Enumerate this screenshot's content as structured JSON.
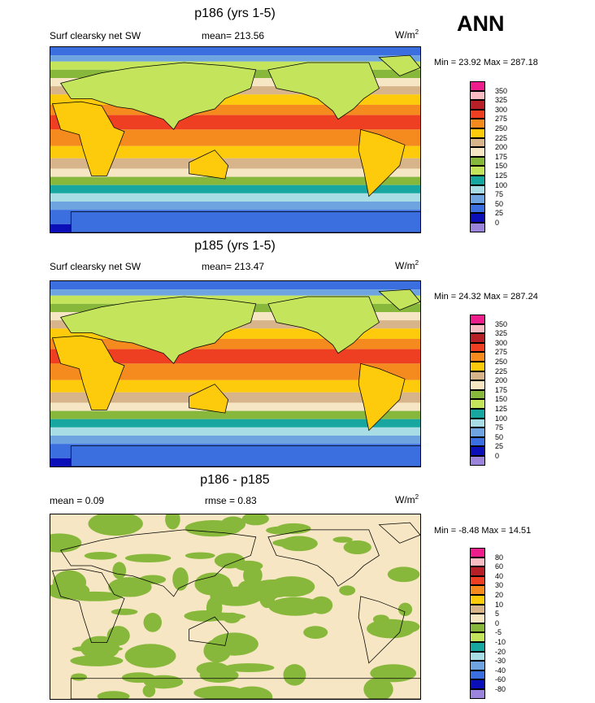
{
  "season": "ANN",
  "panels": [
    {
      "title": "p186 (yrs 1-5)",
      "left_label": "Surf clearsky net SW",
      "center_label": "mean= 213.56",
      "units": "W/m",
      "units_sup": "2",
      "minmax": "Min =  23.92 Max = 287.18",
      "type": "field",
      "levels": [
        "350",
        "325",
        "300",
        "275",
        "250",
        "225",
        "200",
        "175",
        "150",
        "125",
        "100",
        "75",
        "50",
        "25",
        "0"
      ],
      "colors": [
        "#ee1d8c",
        "#f9bcc3",
        "#b51f25",
        "#ef3f23",
        "#f58b1f",
        "#fdcb0b",
        "#d8b48a",
        "#f6e6c3",
        "#88b83b",
        "#c4e55b",
        "#17a7a0",
        "#a9dde6",
        "#6ea5e1",
        "#3b6fe0",
        "#0a0fb8",
        "#9b84dc"
      ]
    },
    {
      "title": "p185 (yrs 1-5)",
      "left_label": "Surf clearsky net SW",
      "center_label": "mean= 213.47",
      "units": "W/m",
      "units_sup": "2",
      "minmax": "Min =  24.32 Max = 287.24",
      "type": "field",
      "levels": [
        "350",
        "325",
        "300",
        "275",
        "250",
        "225",
        "200",
        "175",
        "150",
        "125",
        "100",
        "75",
        "50",
        "25",
        "0"
      ],
      "colors": [
        "#ee1d8c",
        "#f9bcc3",
        "#b51f25",
        "#ef3f23",
        "#f58b1f",
        "#fdcb0b",
        "#d8b48a",
        "#f6e6c3",
        "#88b83b",
        "#c4e55b",
        "#17a7a0",
        "#a9dde6",
        "#6ea5e1",
        "#3b6fe0",
        "#0a0fb8",
        "#9b84dc"
      ]
    },
    {
      "title": "p186 - p185",
      "left_label": "mean =   0.09",
      "center_label": "rmse =   0.83",
      "units": "W/m",
      "units_sup": "2",
      "minmax": "Min =  -8.48 Max =  14.51",
      "type": "diff",
      "levels": [
        "80",
        "60",
        "40",
        "30",
        "20",
        "10",
        "5",
        "0",
        "-5",
        "-10",
        "-20",
        "-30",
        "-40",
        "-60",
        "-80"
      ],
      "colors": [
        "#ee1d8c",
        "#f9bcc3",
        "#b51f25",
        "#ef3f23",
        "#f58b1f",
        "#fdcb0b",
        "#d8b48a",
        "#f6e6c3",
        "#88b83b",
        "#c4e55b",
        "#17a7a0",
        "#a9dde6",
        "#6ea5e1",
        "#3b6fe0",
        "#0a0fb8",
        "#9b84dc"
      ]
    }
  ]
}
